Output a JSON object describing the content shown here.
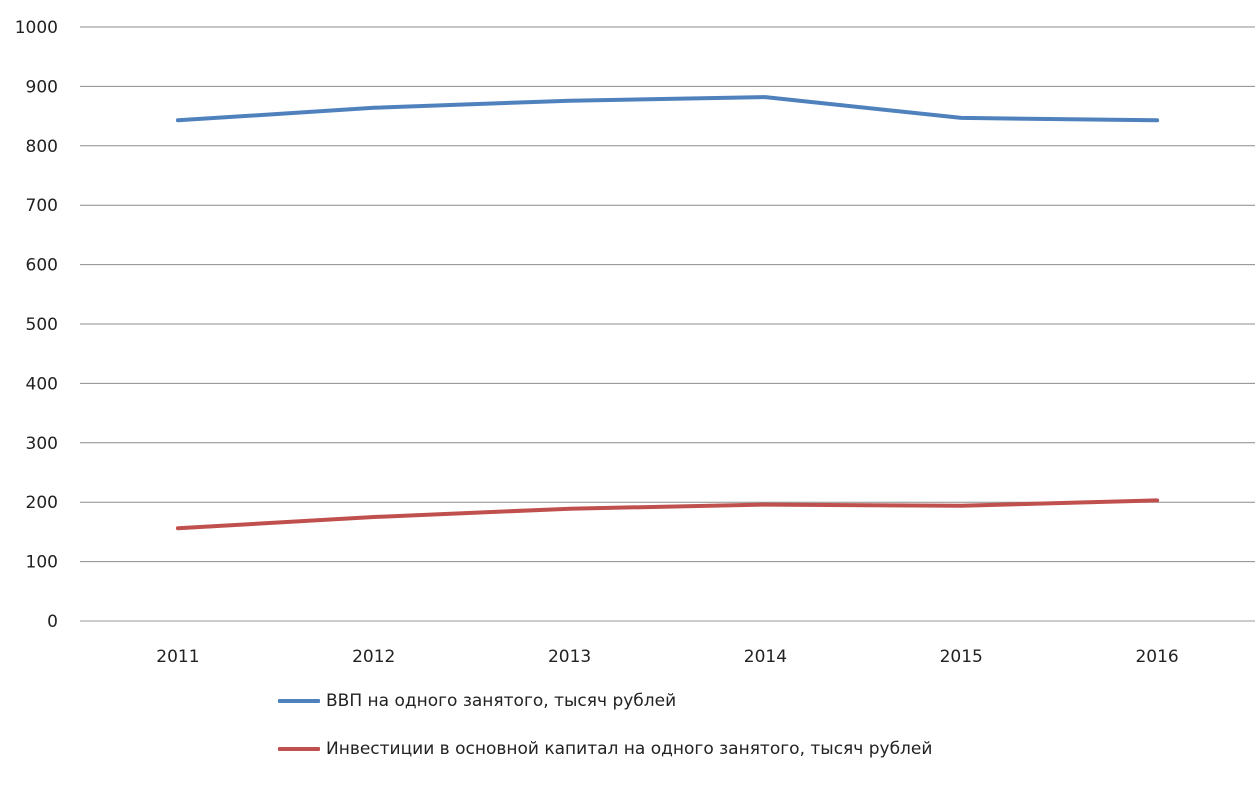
{
  "chart_data": {
    "type": "line",
    "title": "",
    "xlabel": "",
    "ylabel": "",
    "x": [
      "2011",
      "2012",
      "2013",
      "2014",
      "2015",
      "2016"
    ],
    "ylim": [
      0,
      1000
    ],
    "yticks": [
      "0",
      "100",
      "200",
      "300",
      "400",
      "500",
      "600",
      "700",
      "800",
      "900",
      "1000"
    ],
    "grid": true,
    "legend_position": "bottom",
    "series": [
      {
        "name": "ВВП на одного занятого, тысяч рублей",
        "color": "#4f81bd",
        "values": [
          843,
          864,
          876,
          882,
          847,
          843
        ]
      },
      {
        "name": "Инвестиции в основной капитал на одного занятого, тысяч рублей",
        "color": "#c0504d",
        "values": [
          156,
          175,
          189,
          196,
          194,
          203
        ]
      }
    ]
  }
}
